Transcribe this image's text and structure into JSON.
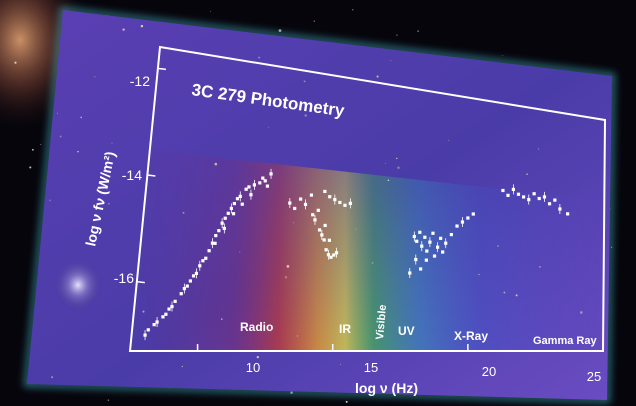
{
  "chart_data": {
    "type": "scatter",
    "title": "3C 279 Photometry",
    "xlabel": "log ν (Hz)",
    "ylabel": "log ν fν (W/m²)",
    "xlim": [
      7.5,
      25
    ],
    "ylim": [
      -17.3,
      -11.6
    ],
    "xticks": [
      "10",
      "15",
      "20",
      "25"
    ],
    "yticks": [
      "-12",
      "-14",
      "-16"
    ],
    "bands": [
      "Radio",
      "IR",
      "Visible",
      "UV",
      "X-Ray",
      "Gamma Ray"
    ],
    "grid": false,
    "series": [
      {
        "points": [
          [
            8.0,
            -17.0
          ],
          [
            8.1,
            -16.9
          ],
          [
            8.3,
            -16.8
          ],
          [
            8.4,
            -16.75
          ],
          [
            8.6,
            -16.65
          ],
          [
            8.7,
            -16.6
          ],
          [
            8.9,
            -16.45
          ],
          [
            9.0,
            -16.35
          ],
          [
            9.2,
            -16.2
          ],
          [
            9.3,
            -16.1
          ],
          [
            9.5,
            -15.95
          ],
          [
            9.6,
            -15.85
          ],
          [
            9.8,
            -15.65
          ],
          [
            9.9,
            -15.55
          ],
          [
            10.1,
            -15.35
          ],
          [
            10.2,
            -15.2
          ],
          [
            10.3,
            -15.05
          ],
          [
            10.4,
            -14.95
          ],
          [
            10.5,
            -14.8
          ],
          [
            10.6,
            -14.7
          ],
          [
            10.7,
            -14.6
          ],
          [
            10.8,
            -14.5
          ],
          [
            10.9,
            -14.4
          ],
          [
            11.0,
            -14.3
          ],
          [
            11.1,
            -14.25
          ],
          [
            11.3,
            -14.1
          ],
          [
            11.4,
            -14.05
          ],
          [
            11.6,
            -14.0
          ],
          [
            11.8,
            -13.95
          ],
          [
            12.0,
            -13.9
          ],
          [
            12.2,
            -13.75
          ],
          [
            10.0,
            -15.5
          ],
          [
            10.3,
            -15.2
          ],
          [
            10.6,
            -14.9
          ],
          [
            10.9,
            -14.6
          ],
          [
            11.2,
            -14.4
          ],
          [
            9.7,
            -15.8
          ],
          [
            9.4,
            -16.05
          ],
          [
            8.8,
            -16.5
          ],
          [
            11.5,
            -14.2
          ],
          [
            11.9,
            -13.85
          ],
          [
            12.1,
            -14.0
          ],
          [
            13.0,
            -14.3
          ],
          [
            13.2,
            -14.4
          ],
          [
            13.4,
            -14.2
          ],
          [
            13.6,
            -14.3
          ],
          [
            13.8,
            -14.1
          ],
          [
            13.9,
            -14.5
          ],
          [
            14.0,
            -14.6
          ],
          [
            14.1,
            -14.4
          ],
          [
            14.2,
            -14.8
          ],
          [
            14.3,
            -14.9
          ],
          [
            14.4,
            -15.0
          ],
          [
            14.5,
            -15.2
          ],
          [
            14.6,
            -15.3
          ],
          [
            14.7,
            -15.35
          ],
          [
            14.8,
            -15.3
          ],
          [
            14.9,
            -15.25
          ],
          [
            14.3,
            -14.0
          ],
          [
            14.5,
            -14.1
          ],
          [
            14.7,
            -14.15
          ],
          [
            14.9,
            -14.2
          ],
          [
            15.1,
            -14.25
          ],
          [
            15.3,
            -14.2
          ],
          [
            14.4,
            -14.7
          ],
          [
            14.6,
            -15.0
          ],
          [
            17.8,
            -14.8
          ],
          [
            17.9,
            -14.9
          ],
          [
            18.0,
            -14.7
          ],
          [
            18.1,
            -15.0
          ],
          [
            18.2,
            -14.8
          ],
          [
            18.3,
            -15.1
          ],
          [
            18.4,
            -14.9
          ],
          [
            18.5,
            -14.7
          ],
          [
            18.6,
            -15.2
          ],
          [
            18.7,
            -15.0
          ],
          [
            18.8,
            -14.8
          ],
          [
            18.9,
            -15.1
          ],
          [
            19.0,
            -14.9
          ],
          [
            19.2,
            -14.7
          ],
          [
            19.4,
            -14.5
          ],
          [
            19.6,
            -14.4
          ],
          [
            19.8,
            -14.3
          ],
          [
            20.0,
            -14.2
          ],
          [
            17.9,
            -15.3
          ],
          [
            18.1,
            -15.5
          ],
          [
            18.3,
            -15.3
          ],
          [
            17.7,
            -15.6
          ],
          [
            21.1,
            -13.6
          ],
          [
            21.3,
            -13.7
          ],
          [
            21.5,
            -13.55
          ],
          [
            21.7,
            -13.65
          ],
          [
            21.9,
            -13.7
          ],
          [
            22.1,
            -13.75
          ],
          [
            22.3,
            -13.6
          ],
          [
            22.5,
            -13.7
          ],
          [
            22.7,
            -13.65
          ],
          [
            22.9,
            -13.8
          ],
          [
            23.1,
            -13.7
          ],
          [
            23.3,
            -13.9
          ],
          [
            23.6,
            -14.0
          ]
        ]
      }
    ]
  }
}
